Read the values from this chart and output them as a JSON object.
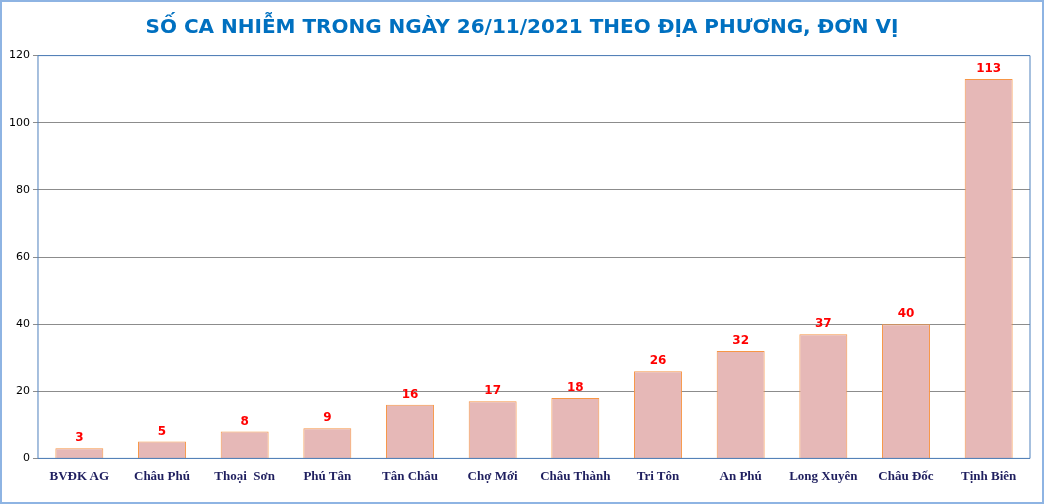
{
  "chart_data": {
    "type": "bar",
    "title": "SỐ CA NHIỄM TRONG NGÀY 26/11/2021 THEO ĐỊA PHƯƠNG, ĐƠN VỊ",
    "categories": [
      "BVĐK AG",
      "Châu Phú",
      "Thoại  Sơn",
      "Phú Tân",
      "Tân Châu",
      "Chợ Mới",
      "Châu Thành",
      "Tri Tôn",
      "An Phú",
      "Long Xuyên",
      "Châu Đốc",
      "Tịnh Biên"
    ],
    "values": [
      3,
      5,
      8,
      9,
      16,
      17,
      18,
      26,
      32,
      37,
      40,
      113
    ],
    "color": "#e6b8b7",
    "ylim": [
      0,
      120
    ],
    "yticks": [
      0,
      20,
      40,
      60,
      80,
      100,
      120
    ],
    "grid": "y",
    "data_labels": true
  }
}
